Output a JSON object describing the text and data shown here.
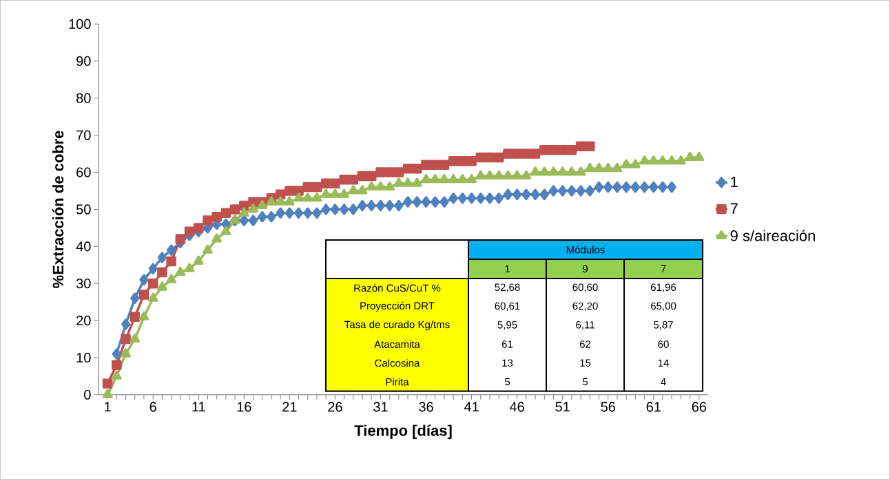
{
  "chart_data": [
    {
      "type": "line",
      "xlabel": "Tiempo [días]",
      "ylabel": "%Extracción de cobre",
      "x": [
        1,
        2,
        3,
        4,
        5,
        6,
        7,
        8,
        9,
        10,
        11,
        12,
        13,
        14,
        15,
        16,
        17,
        18,
        19,
        20,
        21,
        22,
        23,
        24,
        25,
        26,
        27,
        28,
        29,
        30,
        31,
        32,
        33,
        34,
        35,
        36,
        37,
        38,
        39,
        40,
        41,
        42,
        43,
        44,
        45,
        46,
        47,
        48,
        49,
        50,
        51,
        52,
        53,
        54,
        55,
        56,
        57,
        58,
        59,
        60,
        61,
        62,
        63,
        64,
        65,
        66
      ],
      "xlim": [
        0,
        67
      ],
      "xticks": [
        1,
        6,
        11,
        16,
        21,
        26,
        31,
        36,
        41,
        46,
        51,
        56,
        61,
        66
      ],
      "ylim": [
        0,
        100
      ],
      "yticks": [
        0,
        10,
        20,
        30,
        40,
        50,
        60,
        70,
        80,
        90,
        100
      ],
      "legend": "right",
      "line_style": "solid",
      "series": [
        {
          "name": "1",
          "color": "#4f81bd",
          "marker": "diamond",
          "values": [
            null,
            11,
            19,
            26,
            31,
            34,
            37,
            39,
            41,
            43,
            44,
            45,
            46,
            46,
            47,
            47,
            47,
            48,
            48,
            49,
            49,
            49,
            49,
            49,
            50,
            50,
            50,
            50,
            51,
            51,
            51,
            51,
            51,
            52,
            52,
            52,
            52,
            52,
            53,
            53,
            53,
            53,
            53,
            53,
            54,
            54,
            54,
            54,
            54,
            55,
            55,
            55,
            55,
            55,
            56,
            56,
            56,
            56,
            56,
            56,
            56,
            56,
            56,
            null,
            null,
            null
          ]
        },
        {
          "name": "7",
          "color": "#c0504d",
          "marker": "square",
          "values": [
            3,
            8,
            15,
            21,
            27,
            30,
            33,
            36,
            42,
            44,
            45,
            47,
            48,
            49,
            50,
            51,
            52,
            52,
            53,
            54,
            55,
            55,
            56,
            56,
            57,
            57,
            58,
            58,
            59,
            59,
            60,
            60,
            60,
            61,
            61,
            62,
            62,
            62,
            63,
            63,
            63,
            64,
            64,
            64,
            65,
            65,
            65,
            65,
            66,
            66,
            66,
            66,
            67,
            67,
            null,
            null,
            null,
            null,
            null,
            null,
            null,
            null,
            null,
            null,
            null,
            null
          ]
        },
        {
          "name": "9 s/aireación",
          "color": "#9bbb59",
          "marker": "triangle",
          "values": [
            0,
            5,
            11,
            15,
            21,
            26,
            29,
            31,
            33,
            34,
            36,
            39,
            42,
            44,
            47,
            49,
            50,
            51,
            52,
            52,
            52,
            53,
            53,
            53,
            54,
            54,
            54,
            55,
            55,
            56,
            56,
            56,
            57,
            57,
            57,
            58,
            58,
            58,
            58,
            58,
            58,
            59,
            59,
            59,
            59,
            59,
            59,
            60,
            60,
            60,
            60,
            60,
            60,
            61,
            61,
            61,
            61,
            62,
            62,
            63,
            63,
            63,
            63,
            63,
            64,
            64
          ]
        }
      ]
    },
    {
      "type": "other",
      "title": "Módulos",
      "categories": [
        "1",
        "9",
        "7"
      ],
      "y_categories": [
        "Razón CuS/CuT %",
        "Proyección DRT",
        "Tasa de curado Kg/tms",
        "Atacamita",
        "Calcosina",
        "Pirita"
      ],
      "cell_labels": [
        [
          "52,68",
          "60,60",
          "61,96"
        ],
        [
          "60,61",
          "62,20",
          "65,00"
        ],
        [
          "5,95",
          "6,11",
          "5,87"
        ],
        [
          "61",
          "62",
          "60"
        ],
        [
          "13",
          "15",
          "14"
        ],
        [
          "5",
          "5",
          "4"
        ]
      ]
    }
  ]
}
